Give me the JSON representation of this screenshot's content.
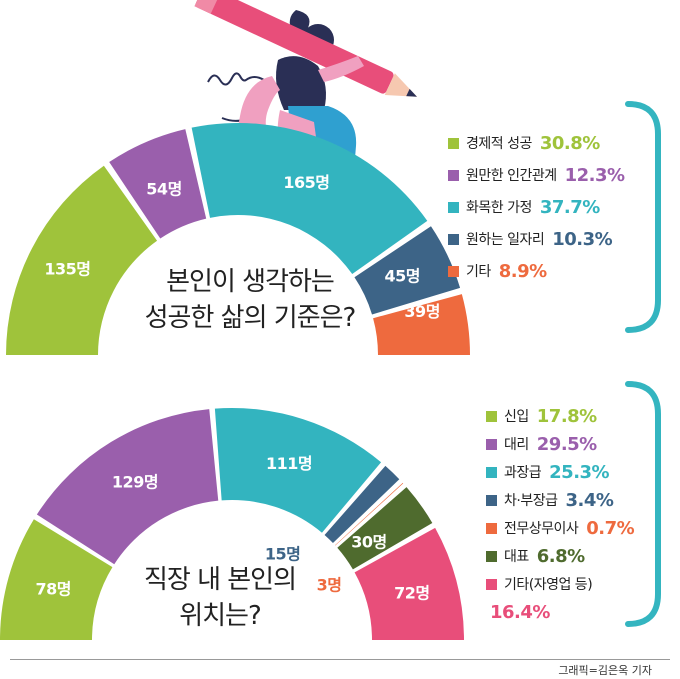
{
  "colors": {
    "green": "#9fc33b",
    "purple": "#9a5fac",
    "teal": "#33b4bf",
    "navy": "#3d6487",
    "orange": "#ee6a3e",
    "olive": "#4f6b2e",
    "pink": "#e84e7a",
    "bracket": "#34b5c0"
  },
  "chart_data": [
    {
      "type": "pie",
      "title": "본인이 생각하는 성공한 삶의 기준은?",
      "half_donut": true,
      "unit": "명",
      "slices": [
        {
          "label": "경제적 성공",
          "count_label": "135명",
          "count": 135,
          "percent_label": "30.8%",
          "percent": 30.8,
          "color": "#9fc33b"
        },
        {
          "label": "원만한 인간관계",
          "count_label": "54명",
          "count": 54,
          "percent_label": "12.3%",
          "percent": 12.3,
          "color": "#9a5fac"
        },
        {
          "label": "화목한 가정",
          "count_label": "165명",
          "count": 165,
          "percent_label": "37.7%",
          "percent": 37.7,
          "color": "#33b4bf"
        },
        {
          "label": "원하는 일자리",
          "count_label": "45명",
          "count": 45,
          "percent_label": "10.3%",
          "percent": 10.3,
          "color": "#3d6487"
        },
        {
          "label": "기타",
          "count_label": "39명",
          "count": 39,
          "percent_label": "8.9%",
          "percent": 8.9,
          "color": "#ee6a3e"
        }
      ]
    },
    {
      "type": "pie",
      "title": "직장 내 본인의 위치는?",
      "half_donut": true,
      "unit": "명",
      "slices": [
        {
          "label": "신입",
          "count_label": "78명",
          "count": 78,
          "percent_label": "17.8%",
          "percent": 17.8,
          "color": "#9fc33b"
        },
        {
          "label": "대리",
          "count_label": "129명",
          "count": 129,
          "percent_label": "29.5%",
          "percent": 29.5,
          "color": "#9a5fac"
        },
        {
          "label": "과장급",
          "count_label": "111명",
          "count": 111,
          "percent_label": "25.3%",
          "percent": 25.3,
          "color": "#33b4bf"
        },
        {
          "label": "차·부장급",
          "count_label": "15명",
          "count": 15,
          "percent_label": "3.4%",
          "percent": 3.4,
          "color": "#3d6487"
        },
        {
          "label": "전무상무이사",
          "count_label": "3명",
          "count": 3,
          "percent_label": "0.7%",
          "percent": 0.7,
          "color": "#ee6a3e"
        },
        {
          "label": "대표",
          "count_label": "30명",
          "count": 30,
          "percent_label": "6.8%",
          "percent": 6.8,
          "color": "#4f6b2e"
        },
        {
          "label": "기타(자영업 등)",
          "count_label": "72명",
          "count": 72,
          "percent_label": "16.4%",
          "percent": 16.4,
          "color": "#e84e7a"
        }
      ]
    }
  ],
  "chart1": {
    "title_line1": "본인이 생각하는",
    "title_line2": "성공한 삶의 기준은?"
  },
  "chart2": {
    "title_line1": "직장 내 본인의",
    "title_line2": "위치는?"
  },
  "credit": "그래픽=김은옥 기자"
}
